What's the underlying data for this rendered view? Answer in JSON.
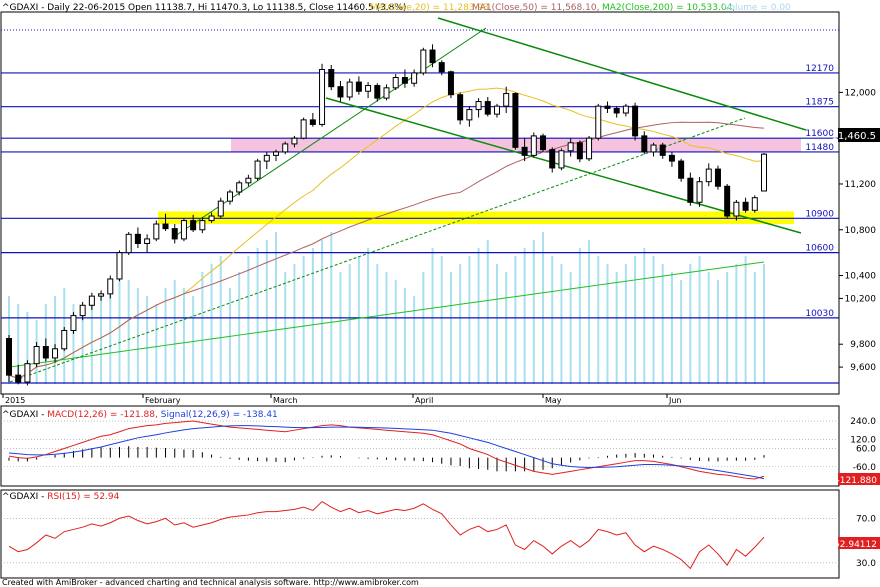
{
  "header": {
    "symbol": "^GDAXI",
    "info": "^GDAXI - Daily 22-06-2015 Open 11138.7, Hi 11470.3, Lo 11138.5, Close 11460.5 (3.8%)",
    "ma20": "MA(Close,20) = 11,283.93,",
    "ma1": "MA1(Close,50) = 11,568.10,",
    "ma2": "MA2(Close,200) = 10,533.04,",
    "volume": "Volume = 0.00"
  },
  "colors": {
    "background": "#ffffff",
    "up_candle": "#ffffff",
    "down_candle": "#000000",
    "ma20": "#e8c020",
    "ma50": "#b06060",
    "ma200": "#20c020",
    "channel": "#0a8a0a",
    "hline": "#1010c0",
    "pink_zone": "#f5b8d8",
    "yellow_zone": "#ffff00",
    "volume": "#a8e0f0",
    "macd": "#e02020",
    "signal": "#2040e0",
    "rsi": "#e02020"
  },
  "price_axis": [
    "12,000",
    "11,600",
    "11,200",
    "10,800",
    "10,400",
    "10,200",
    "9,800",
    "9,600"
  ],
  "current_price_label": "11,460.5",
  "levels": [
    "12170",
    "11875",
    "11600",
    "11480",
    "10900",
    "10600",
    "10030"
  ],
  "months": [
    "2015",
    "February",
    "March",
    "April",
    "May",
    "Jun"
  ],
  "macd_panel": {
    "title_sym": "^GDAXI - ",
    "title_macd": "MACD(12,26) = -121.88,",
    "title_signal": "Signal(12,26,9) = -138.41",
    "axis": [
      "240.0",
      "120.0",
      "60.0",
      "-60.0"
    ],
    "value_label": "-121.880"
  },
  "rsi_panel": {
    "title_sym": "^GDAXI - ",
    "title_rsi": "RSI(15) = 52.94",
    "axis": [
      "70.0",
      "30.0"
    ],
    "value_label": "52.94112"
  },
  "footer": "Created with AmiBroker - advanced charting and technical analysis software. http://www.amibroker.com",
  "chart_data": {
    "type": "candlestick",
    "title": "^GDAXI - Daily 22-06-2015",
    "ylim": [
      9400,
      12650
    ],
    "horizontal_levels": [
      12170,
      11875,
      11600,
      11480,
      10900,
      10600,
      10030
    ],
    "zones": [
      {
        "name": "pink",
        "from": 11480,
        "to": 11600
      },
      {
        "name": "yellow",
        "from": 10850,
        "to": 10960
      }
    ],
    "ohlc": [
      [
        9850,
        9880,
        9470,
        9530
      ],
      [
        9530,
        9620,
        9450,
        9470
      ],
      [
        9470,
        9660,
        9440,
        9630
      ],
      [
        9630,
        9820,
        9600,
        9780
      ],
      [
        9780,
        9850,
        9650,
        9680
      ],
      [
        9680,
        9800,
        9640,
        9760
      ],
      [
        9760,
        9950,
        9740,
        9920
      ],
      [
        9920,
        10080,
        9890,
        10050
      ],
      [
        10050,
        10170,
        10010,
        10140
      ],
      [
        10140,
        10250,
        10100,
        10220
      ],
      [
        10220,
        10270,
        10180,
        10240
      ],
      [
        10240,
        10400,
        10200,
        10370
      ],
      [
        10370,
        10620,
        10350,
        10600
      ],
      [
        10600,
        10780,
        10580,
        10760
      ],
      [
        10760,
        10820,
        10640,
        10680
      ],
      [
        10680,
        10760,
        10600,
        10720
      ],
      [
        10720,
        10880,
        10700,
        10850
      ],
      [
        10850,
        10940,
        10790,
        10810
      ],
      [
        10810,
        10850,
        10680,
        10720
      ],
      [
        10720,
        10900,
        10700,
        10880
      ],
      [
        10880,
        10930,
        10780,
        10800
      ],
      [
        10800,
        10910,
        10770,
        10880
      ],
      [
        10880,
        10950,
        10860,
        10920
      ],
      [
        10920,
        11080,
        10900,
        11050
      ],
      [
        11050,
        11150,
        11020,
        11130
      ],
      [
        11130,
        11230,
        11100,
        11210
      ],
      [
        11210,
        11280,
        11180,
        11250
      ],
      [
        11250,
        11420,
        11230,
        11400
      ],
      [
        11400,
        11480,
        11330,
        11450
      ],
      [
        11450,
        11500,
        11400,
        11480
      ],
      [
        11480,
        11570,
        11460,
        11550
      ],
      [
        11550,
        11620,
        11520,
        11600
      ],
      [
        11600,
        11780,
        11590,
        11760
      ],
      [
        11760,
        11820,
        11700,
        11720
      ],
      [
        11720,
        12250,
        11700,
        12200
      ],
      [
        12200,
        12240,
        12020,
        12050
      ],
      [
        12050,
        12100,
        11920,
        11960
      ],
      [
        11960,
        12120,
        11930,
        12090
      ],
      [
        12090,
        12140,
        11980,
        12010
      ],
      [
        12010,
        12090,
        11950,
        12060
      ],
      [
        12060,
        12080,
        11920,
        11950
      ],
      [
        11950,
        12070,
        11930,
        12040
      ],
      [
        12040,
        12160,
        12020,
        12130
      ],
      [
        12130,
        12200,
        12040,
        12080
      ],
      [
        12080,
        12200,
        12050,
        12170
      ],
      [
        12170,
        12390,
        12150,
        12370
      ],
      [
        12370,
        12420,
        12220,
        12260
      ],
      [
        12260,
        12280,
        12150,
        12180
      ],
      [
        12180,
        12190,
        11950,
        11980
      ],
      [
        11980,
        12000,
        11720,
        11760
      ],
      [
        11760,
        11880,
        11700,
        11850
      ],
      [
        11850,
        11950,
        11780,
        11920
      ],
      [
        11920,
        11960,
        11790,
        11810
      ],
      [
        11810,
        11900,
        11780,
        11880
      ],
      [
        11880,
        12050,
        11820,
        11990
      ],
      [
        11990,
        12000,
        11500,
        11520
      ],
      [
        11520,
        11600,
        11400,
        11450
      ],
      [
        11450,
        11650,
        11430,
        11620
      ],
      [
        11620,
        11640,
        11480,
        11500
      ],
      [
        11500,
        11520,
        11300,
        11340
      ],
      [
        11340,
        11510,
        11320,
        11490
      ],
      [
        11490,
        11600,
        11440,
        11560
      ],
      [
        11560,
        11580,
        11390,
        11420
      ],
      [
        11420,
        11620,
        11400,
        11600
      ],
      [
        11600,
        11900,
        11580,
        11880
      ],
      [
        11880,
        11920,
        11820,
        11860
      ],
      [
        11860,
        11880,
        11780,
        11820
      ],
      [
        11820,
        11900,
        11790,
        11880
      ],
      [
        11880,
        11910,
        11580,
        11620
      ],
      [
        11620,
        11660,
        11460,
        11480
      ],
      [
        11480,
        11560,
        11440,
        11540
      ],
      [
        11540,
        11560,
        11420,
        11450
      ],
      [
        11450,
        11480,
        11350,
        11400
      ],
      [
        11400,
        11420,
        11220,
        11250
      ],
      [
        11250,
        11300,
        11010,
        11040
      ],
      [
        11040,
        11260,
        11000,
        11220
      ],
      [
        11220,
        11380,
        11180,
        11330
      ],
      [
        11330,
        11360,
        11150,
        11180
      ],
      [
        11180,
        11200,
        10900,
        10920
      ],
      [
        10920,
        11060,
        10880,
        11040
      ],
      [
        11040,
        11080,
        10950,
        10970
      ],
      [
        10970,
        11100,
        10950,
        11080
      ],
      [
        11138.7,
        11470.3,
        11138.5,
        11460.5
      ]
    ],
    "volume_relative": [
      0.55,
      0.5,
      0.45,
      0.4,
      0.5,
      0.55,
      0.6,
      0.5,
      0.45,
      0.5,
      0.55,
      0.6,
      0.7,
      0.65,
      0.6,
      0.55,
      0.5,
      0.6,
      0.65,
      0.6,
      0.55,
      0.7,
      0.75,
      0.8,
      0.6,
      0.7,
      0.8,
      0.85,
      0.9,
      0.95,
      0.7,
      0.75,
      0.8,
      0.85,
      0.9,
      0.95,
      0.7,
      0.75,
      0.8,
      0.85,
      0.75,
      0.7,
      0.65,
      0.6,
      0.55,
      0.7,
      0.85,
      0.8,
      0.7,
      0.75,
      0.8,
      0.85,
      0.9,
      0.75,
      0.7,
      0.8,
      0.85,
      0.9,
      0.95,
      0.8,
      0.75,
      0.7,
      0.85,
      0.9,
      0.8,
      0.75,
      0.7,
      0.75,
      0.8,
      0.85,
      0.8,
      0.75,
      0.7,
      0.65,
      0.75,
      0.8,
      0.7,
      0.65,
      0.7,
      0.75,
      0.8,
      0.7,
      0.75
    ],
    "macd": [
      10,
      0,
      -5,
      5,
      20,
      40,
      60,
      80,
      100,
      120,
      140,
      150,
      170,
      190,
      200,
      210,
      215,
      225,
      230,
      235,
      240,
      230,
      220,
      210,
      200,
      195,
      190,
      185,
      180,
      175,
      170,
      180,
      190,
      200,
      210,
      215,
      210,
      200,
      195,
      190,
      185,
      180,
      175,
      170,
      165,
      160,
      150,
      130,
      110,
      90,
      60,
      40,
      20,
      -10,
      -30,
      -50,
      -70,
      -90,
      -100,
      -110,
      -100,
      -90,
      -80,
      -70,
      -60,
      -50,
      -40,
      -30,
      -20,
      -20,
      -25,
      -35,
      -45,
      -60,
      -75,
      -90,
      -100,
      -110,
      -115,
      -125,
      -135,
      -140,
      -122
    ],
    "signal": [
      30,
      25,
      20,
      18,
      18,
      22,
      28,
      36,
      46,
      58,
      70,
      85,
      100,
      115,
      130,
      140,
      150,
      162,
      172,
      182,
      190,
      195,
      200,
      205,
      208,
      210,
      210,
      208,
      205,
      203,
      200,
      198,
      197,
      197,
      198,
      200,
      200,
      200,
      199,
      198,
      196,
      194,
      192,
      189,
      186,
      183,
      180,
      170,
      160,
      145,
      130,
      115,
      100,
      80,
      60,
      40,
      20,
      0,
      -20,
      -40,
      -50,
      -58,
      -62,
      -65,
      -64,
      -62,
      -60,
      -55,
      -50,
      -45,
      -45,
      -47,
      -50,
      -55,
      -60,
      -68,
      -76,
      -85,
      -95,
      -105,
      -115,
      -125,
      -138
    ],
    "rsi": [
      45,
      40,
      42,
      48,
      55,
      52,
      58,
      60,
      62,
      65,
      63,
      66,
      70,
      72,
      68,
      65,
      67,
      70,
      64,
      66,
      62,
      64,
      66,
      69,
      71,
      72,
      73,
      75,
      76,
      76,
      77,
      78,
      80,
      77,
      85,
      80,
      76,
      79,
      75,
      77,
      74,
      76,
      78,
      77,
      79,
      83,
      78,
      74,
      64,
      55,
      60,
      63,
      58,
      60,
      64,
      46,
      42,
      50,
      45,
      38,
      45,
      50,
      44,
      50,
      60,
      58,
      55,
      57,
      46,
      40,
      45,
      42,
      38,
      33,
      25,
      40,
      46,
      38,
      28,
      42,
      36,
      44,
      53
    ]
  }
}
